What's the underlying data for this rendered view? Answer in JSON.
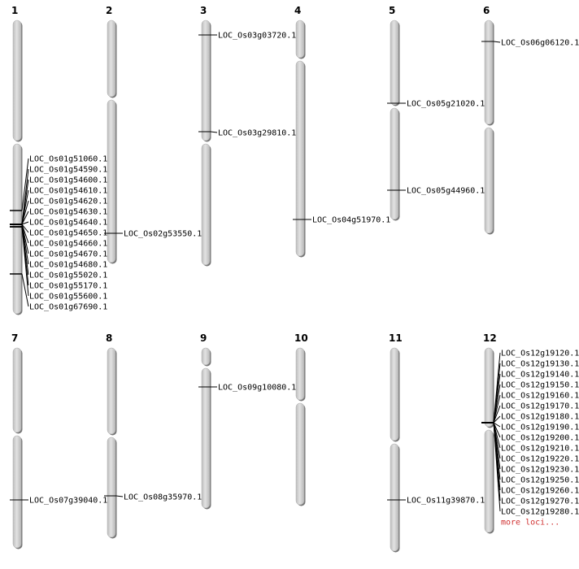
{
  "chromosomes": [
    {
      "number": "1",
      "loci": [
        "LOC_Os01g51060.1",
        "LOC_Os01g54590.1",
        "LOC_Os01g54600.1",
        "LOC_Os01g54610.1",
        "LOC_Os01g54620.1",
        "LOC_Os01g54630.1",
        "LOC_Os01g54640.1",
        "LOC_Os01g54650.1",
        "LOC_Os01g54660.1",
        "LOC_Os01g54670.1",
        "LOC_Os01g54680.1",
        "LOC_Os01g55020.1",
        "LOC_Os01g55170.1",
        "LOC_Os01g55600.1",
        "LOC_Os01g67690.1"
      ]
    },
    {
      "number": "2",
      "loci": [
        "LOC_Os02g53550.1"
      ]
    },
    {
      "number": "3",
      "loci": [
        "LOC_Os03g03720.1",
        "LOC_Os03g29810.1"
      ]
    },
    {
      "number": "4",
      "loci": [
        "LOC_Os04g51970.1"
      ]
    },
    {
      "number": "5",
      "loci": [
        "LOC_Os05g21020.1",
        "LOC_Os05g44960.1"
      ]
    },
    {
      "number": "6",
      "loci": [
        "LOC_Os06g06120.1"
      ]
    },
    {
      "number": "7",
      "loci": [
        "LOC_Os07g39040.1"
      ]
    },
    {
      "number": "8",
      "loci": [
        "LOC_Os08g35970.1"
      ]
    },
    {
      "number": "9",
      "loci": [
        "LOC_Os09g10080.1"
      ]
    },
    {
      "number": "10",
      "loci": []
    },
    {
      "number": "11",
      "loci": [
        "LOC_Os11g39870.1"
      ]
    },
    {
      "number": "12",
      "loci": [
        "LOC_Os12g19120.1",
        "LOC_Os12g19130.1",
        "LOC_Os12g19140.1",
        "LOC_Os12g19150.1",
        "LOC_Os12g19160.1",
        "LOC_Os12g19170.1",
        "LOC_Os12g19180.1",
        "LOC_Os12g19190.1",
        "LOC_Os12g19200.1",
        "LOC_Os12g19210.1",
        "LOC_Os12g19220.1",
        "LOC_Os12g19230.1",
        "LOC_Os12g19250.1",
        "LOC_Os12g19260.1",
        "LOC_Os12g19270.1",
        "LOC_Os12g19280.1"
      ],
      "more_label": "more loci..."
    }
  ],
  "colors": {
    "chromosome": "#d4d4d4",
    "more_link": "#d03030",
    "marker": "#000000"
  }
}
